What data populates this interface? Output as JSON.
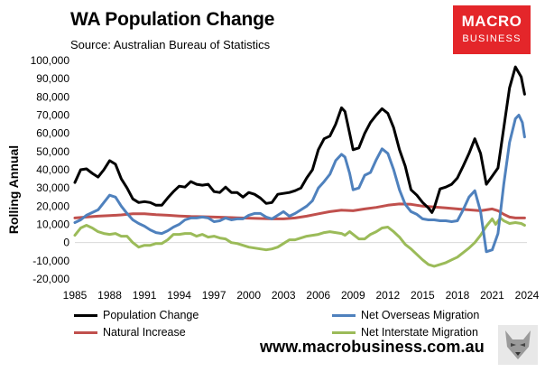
{
  "header": {
    "title": "WA Population Change",
    "source": "Source: Australian Bureau of Statistics"
  },
  "logo": {
    "line1": "MACRO",
    "line2": "BUSINESS"
  },
  "footer": {
    "website": "www.macrobusiness.com.au"
  },
  "colors": {
    "population": "#000000",
    "overseas": "#4f81bd",
    "natural": "#c0504d",
    "interstate": "#9bbb59"
  },
  "chart_data": {
    "type": "line",
    "title": "WA Population Change",
    "xlabel": "",
    "ylabel": "Rolling Annual",
    "xlim": [
      1985,
      2024
    ],
    "ylim": [
      -20000,
      100000
    ],
    "x_ticks": [
      "1985",
      "1988",
      "1991",
      "1994",
      "1997",
      "2000",
      "2003",
      "2006",
      "2009",
      "2012",
      "2015",
      "2018",
      "2021",
      "2024"
    ],
    "y_ticks": [
      "100,000",
      "90,000",
      "80,000",
      "70,000",
      "60,000",
      "50,000",
      "40,000",
      "30,000",
      "20,000",
      "10,000",
      "0",
      "-10,000",
      "-20,000"
    ],
    "y_tick_values": [
      100000,
      90000,
      80000,
      70000,
      60000,
      50000,
      40000,
      30000,
      20000,
      10000,
      0,
      -10000,
      -20000
    ],
    "series": [
      {
        "name": "Population Change",
        "color": "#000000",
        "points": [
          [
            1985,
            33000
          ],
          [
            1985.5,
            40000
          ],
          [
            1986,
            40500
          ],
          [
            1986.5,
            38000
          ],
          [
            1987,
            36000
          ],
          [
            1987.5,
            40000
          ],
          [
            1988,
            45000
          ],
          [
            1988.5,
            43000
          ],
          [
            1989,
            35000
          ],
          [
            1989.5,
            30000
          ],
          [
            1990,
            24000
          ],
          [
            1990.5,
            22000
          ],
          [
            1991,
            22500
          ],
          [
            1991.5,
            22000
          ],
          [
            1992,
            20500
          ],
          [
            1992.5,
            20500
          ],
          [
            1993,
            24500
          ],
          [
            1993.5,
            28000
          ],
          [
            1994,
            31000
          ],
          [
            1994.5,
            30500
          ],
          [
            1995,
            33500
          ],
          [
            1995.5,
            32000
          ],
          [
            1996,
            31500
          ],
          [
            1996.5,
            32000
          ],
          [
            1997,
            28000
          ],
          [
            1997.5,
            27500
          ],
          [
            1998,
            30500
          ],
          [
            1998.5,
            27500
          ],
          [
            1999,
            27500
          ],
          [
            1999.5,
            25000
          ],
          [
            2000,
            27500
          ],
          [
            2000.5,
            26500
          ],
          [
            2001,
            24500
          ],
          [
            2001.5,
            21500
          ],
          [
            2002,
            22000
          ],
          [
            2002.5,
            26500
          ],
          [
            2003,
            27000
          ],
          [
            2003.5,
            27500
          ],
          [
            2004,
            28500
          ],
          [
            2004.5,
            30000
          ],
          [
            2005,
            35500
          ],
          [
            2005.5,
            40000
          ],
          [
            2006,
            51000
          ],
          [
            2006.5,
            57000
          ],
          [
            2007,
            58500
          ],
          [
            2007.5,
            65000
          ],
          [
            2008,
            74000
          ],
          [
            2008.3,
            72000
          ],
          [
            2008.7,
            60000
          ],
          [
            2009,
            51000
          ],
          [
            2009.5,
            52000
          ],
          [
            2010,
            60000
          ],
          [
            2010.5,
            66000
          ],
          [
            2011,
            70000
          ],
          [
            2011.5,
            73500
          ],
          [
            2012,
            71000
          ],
          [
            2012.5,
            63000
          ],
          [
            2013,
            51000
          ],
          [
            2013.5,
            42000
          ],
          [
            2014,
            29000
          ],
          [
            2014.5,
            26000
          ],
          [
            2015,
            22000
          ],
          [
            2015.5,
            19000
          ],
          [
            2015.8,
            16500
          ],
          [
            2016,
            19000
          ],
          [
            2016.5,
            29500
          ],
          [
            2017,
            30500
          ],
          [
            2017.5,
            32000
          ],
          [
            2018,
            35500
          ],
          [
            2018.5,
            42000
          ],
          [
            2019,
            49000
          ],
          [
            2019.5,
            57000
          ],
          [
            2020,
            49000
          ],
          [
            2020.5,
            32000
          ],
          [
            2021,
            36500
          ],
          [
            2021.5,
            41000
          ],
          [
            2022,
            63000
          ],
          [
            2022.5,
            85000
          ],
          [
            2023,
            96500
          ],
          [
            2023.5,
            91000
          ],
          [
            2023.8,
            81500
          ]
        ]
      },
      {
        "name": "Net Overseas Migration",
        "color": "#4f81bd",
        "points": [
          [
            1985,
            11000
          ],
          [
            1985.5,
            12500
          ],
          [
            1986,
            15000
          ],
          [
            1986.5,
            16500
          ],
          [
            1987,
            18000
          ],
          [
            1987.5,
            22000
          ],
          [
            1988,
            26000
          ],
          [
            1988.5,
            25000
          ],
          [
            1989,
            20000
          ],
          [
            1989.5,
            16000
          ],
          [
            1990,
            12500
          ],
          [
            1990.5,
            10500
          ],
          [
            1991,
            9000
          ],
          [
            1991.5,
            7000
          ],
          [
            1992,
            5500
          ],
          [
            1992.5,
            5000
          ],
          [
            1993,
            6500
          ],
          [
            1993.5,
            8500
          ],
          [
            1994,
            10000
          ],
          [
            1994.5,
            12500
          ],
          [
            1995,
            13500
          ],
          [
            1995.5,
            13500
          ],
          [
            1996,
            14000
          ],
          [
            1996.5,
            13500
          ],
          [
            1997,
            11500
          ],
          [
            1997.5,
            12000
          ],
          [
            1998,
            13500
          ],
          [
            1998.5,
            12500
          ],
          [
            1999,
            13000
          ],
          [
            1999.5,
            13000
          ],
          [
            2000,
            15000
          ],
          [
            2000.5,
            16000
          ],
          [
            2001,
            16000
          ],
          [
            2001.5,
            14000
          ],
          [
            2002,
            13000
          ],
          [
            2002.5,
            15000
          ],
          [
            2003,
            17000
          ],
          [
            2003.5,
            14500
          ],
          [
            2004,
            16000
          ],
          [
            2004.5,
            18000
          ],
          [
            2005,
            20000
          ],
          [
            2005.5,
            23000
          ],
          [
            2006,
            30000
          ],
          [
            2006.5,
            33500
          ],
          [
            2007,
            37500
          ],
          [
            2007.5,
            45000
          ],
          [
            2008,
            48500
          ],
          [
            2008.3,
            47000
          ],
          [
            2008.7,
            38000
          ],
          [
            2009,
            29000
          ],
          [
            2009.5,
            30000
          ],
          [
            2010,
            37000
          ],
          [
            2010.5,
            38500
          ],
          [
            2011,
            45500
          ],
          [
            2011.5,
            51500
          ],
          [
            2012,
            49000
          ],
          [
            2012.5,
            40000
          ],
          [
            2013,
            29000
          ],
          [
            2013.5,
            21000
          ],
          [
            2014,
            17000
          ],
          [
            2014.5,
            15500
          ],
          [
            2015,
            13000
          ],
          [
            2015.5,
            12500
          ],
          [
            2016,
            12500
          ],
          [
            2016.5,
            12000
          ],
          [
            2017,
            12000
          ],
          [
            2017.5,
            11500
          ],
          [
            2018,
            12000
          ],
          [
            2018.5,
            18000
          ],
          [
            2019,
            25000
          ],
          [
            2019.5,
            28500
          ],
          [
            2020,
            17000
          ],
          [
            2020.5,
            -5000
          ],
          [
            2021,
            -4000
          ],
          [
            2021.5,
            5000
          ],
          [
            2022,
            32000
          ],
          [
            2022.5,
            55000
          ],
          [
            2023,
            68000
          ],
          [
            2023.3,
            70000
          ],
          [
            2023.6,
            66000
          ],
          [
            2023.8,
            58000
          ]
        ]
      },
      {
        "name": "Natural Increase",
        "color": "#c0504d",
        "points": [
          [
            1985,
            13500
          ],
          [
            1986,
            14000
          ],
          [
            1987,
            14500
          ],
          [
            1988,
            14800
          ],
          [
            1989,
            15200
          ],
          [
            1990,
            15800
          ],
          [
            1991,
            15800
          ],
          [
            1992,
            15300
          ],
          [
            1993,
            15000
          ],
          [
            1994,
            14600
          ],
          [
            1995,
            14300
          ],
          [
            1996,
            14200
          ],
          [
            1997,
            14000
          ],
          [
            1998,
            13800
          ],
          [
            1999,
            13600
          ],
          [
            2000,
            13400
          ],
          [
            2001,
            13200
          ],
          [
            2002,
            13000
          ],
          [
            2003,
            13000
          ],
          [
            2004,
            13500
          ],
          [
            2005,
            14500
          ],
          [
            2006,
            15800
          ],
          [
            2007,
            17000
          ],
          [
            2008,
            17800
          ],
          [
            2009,
            17500
          ],
          [
            2010,
            18500
          ],
          [
            2011,
            19300
          ],
          [
            2012,
            20500
          ],
          [
            2013,
            21200
          ],
          [
            2014,
            21000
          ],
          [
            2015,
            20000
          ],
          [
            2016,
            19500
          ],
          [
            2017,
            19000
          ],
          [
            2018,
            18500
          ],
          [
            2019,
            18000
          ],
          [
            2020,
            17500
          ],
          [
            2021,
            18500
          ],
          [
            2021.5,
            17500
          ],
          [
            2022,
            15500
          ],
          [
            2022.5,
            14000
          ],
          [
            2023,
            13500
          ],
          [
            2023.8,
            13500
          ]
        ]
      },
      {
        "name": "Net Interstate Migration",
        "color": "#9bbb59",
        "points": [
          [
            1985,
            4000
          ],
          [
            1985.5,
            8000
          ],
          [
            1986,
            9500
          ],
          [
            1986.5,
            8000
          ],
          [
            1987,
            6000
          ],
          [
            1987.5,
            5000
          ],
          [
            1988,
            4500
          ],
          [
            1988.5,
            5000
          ],
          [
            1989,
            3500
          ],
          [
            1989.5,
            3500
          ],
          [
            1990,
            0
          ],
          [
            1990.5,
            -2500
          ],
          [
            1991,
            -1500
          ],
          [
            1991.5,
            -1500
          ],
          [
            1992,
            -500
          ],
          [
            1992.5,
            -500
          ],
          [
            1993,
            1500
          ],
          [
            1993.5,
            4500
          ],
          [
            1994,
            4500
          ],
          [
            1994.5,
            5000
          ],
          [
            1995,
            5000
          ],
          [
            1995.5,
            3500
          ],
          [
            1996,
            4500
          ],
          [
            1996.5,
            3000
          ],
          [
            1997,
            3500
          ],
          [
            1997.5,
            2500
          ],
          [
            1998,
            2000
          ],
          [
            1998.5,
            0
          ],
          [
            1999,
            -500
          ],
          [
            1999.5,
            -1500
          ],
          [
            2000,
            -2500
          ],
          [
            2000.5,
            -3000
          ],
          [
            2001,
            -3500
          ],
          [
            2001.5,
            -4000
          ],
          [
            2002,
            -3500
          ],
          [
            2002.5,
            -2500
          ],
          [
            2003,
            -500
          ],
          [
            2003.5,
            1500
          ],
          [
            2004,
            1500
          ],
          [
            2004.5,
            2500
          ],
          [
            2005,
            3500
          ],
          [
            2005.5,
            4000
          ],
          [
            2006,
            4500
          ],
          [
            2006.5,
            5500
          ],
          [
            2007,
            6000
          ],
          [
            2007.5,
            5500
          ],
          [
            2008,
            5000
          ],
          [
            2008.3,
            4000
          ],
          [
            2008.7,
            6000
          ],
          [
            2009,
            4500
          ],
          [
            2009.5,
            2000
          ],
          [
            2010,
            2000
          ],
          [
            2010.5,
            4500
          ],
          [
            2011,
            6000
          ],
          [
            2011.5,
            8000
          ],
          [
            2012,
            8500
          ],
          [
            2012.5,
            6000
          ],
          [
            2013,
            3000
          ],
          [
            2013.5,
            -1000
          ],
          [
            2014,
            -3500
          ],
          [
            2014.5,
            -6500
          ],
          [
            2015,
            -9500
          ],
          [
            2015.5,
            -12000
          ],
          [
            2016,
            -13000
          ],
          [
            2016.5,
            -12000
          ],
          [
            2017,
            -11000
          ],
          [
            2017.5,
            -9500
          ],
          [
            2018,
            -8000
          ],
          [
            2018.5,
            -5500
          ],
          [
            2019,
            -3000
          ],
          [
            2019.5,
            0
          ],
          [
            2020,
            4000
          ],
          [
            2020.5,
            9000
          ],
          [
            2021,
            13000
          ],
          [
            2021.3,
            10000
          ],
          [
            2021.7,
            13500
          ],
          [
            2022,
            12000
          ],
          [
            2022.5,
            10500
          ],
          [
            2023,
            11000
          ],
          [
            2023.5,
            10500
          ],
          [
            2023.8,
            9500
          ]
        ]
      }
    ],
    "legend": [
      {
        "label": "Population Change",
        "color": "#000000"
      },
      {
        "label": "Net Overseas Migration",
        "color": "#4f81bd"
      },
      {
        "label": "Natural Increase",
        "color": "#c0504d"
      },
      {
        "label": "Net Interstate Migration",
        "color": "#9bbb59"
      }
    ]
  }
}
